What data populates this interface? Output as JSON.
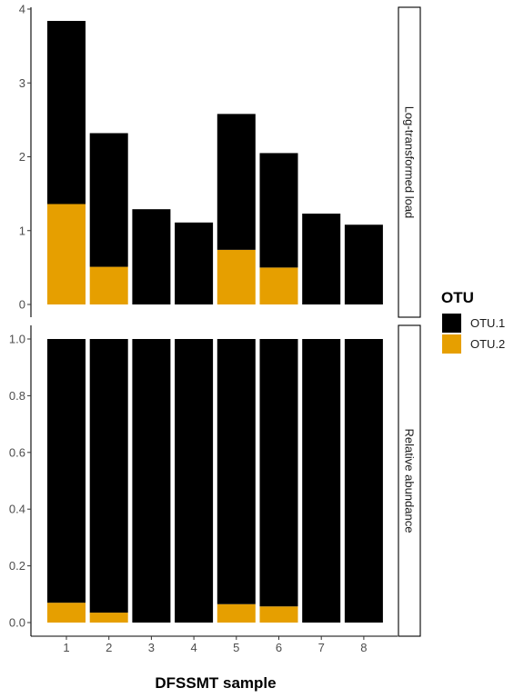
{
  "chart_data": {
    "type": "bar",
    "stacked": true,
    "faceted": true,
    "xlabel": "DFSSMT sample",
    "categories": [
      "1",
      "2",
      "3",
      "4",
      "5",
      "6",
      "7",
      "8"
    ],
    "legend": {
      "title": "OTU",
      "placement": "right",
      "items": [
        {
          "name": "OTU.1",
          "color": "#000000"
        },
        {
          "name": "OTU.2",
          "color": "#E69F00"
        }
      ]
    },
    "panels": [
      {
        "strip_label": "Log-transformed load",
        "ylim": [
          0,
          4
        ],
        "yticks": [
          0,
          1,
          2,
          3,
          4
        ],
        "ytick_labels": [
          "0",
          "1",
          "2",
          "3",
          "4"
        ],
        "series": [
          {
            "name": "OTU.2",
            "color": "#E69F00",
            "values": [
              1.36,
              0.51,
              0,
              0,
              0.74,
              0.5,
              0,
              0
            ]
          },
          {
            "name": "OTU.1",
            "color": "#000000",
            "values": [
              2.48,
              1.81,
              1.29,
              1.11,
              1.84,
              1.55,
              1.23,
              1.08
            ]
          }
        ]
      },
      {
        "strip_label": "Relative abundance",
        "ylim": [
          0,
          1
        ],
        "yticks": [
          0,
          0.2,
          0.4,
          0.6,
          0.8,
          1.0
        ],
        "ytick_labels": [
          "0.0",
          "0.2",
          "0.4",
          "0.6",
          "0.8",
          "1.0"
        ],
        "series": [
          {
            "name": "OTU.2",
            "color": "#E69F00",
            "values": [
              0.07,
              0.035,
              0,
              0,
              0.065,
              0.057,
              0,
              0
            ]
          },
          {
            "name": "OTU.1",
            "color": "#000000",
            "values": [
              0.93,
              0.965,
              1,
              1,
              0.935,
              0.943,
              1,
              1
            ]
          }
        ]
      }
    ]
  }
}
